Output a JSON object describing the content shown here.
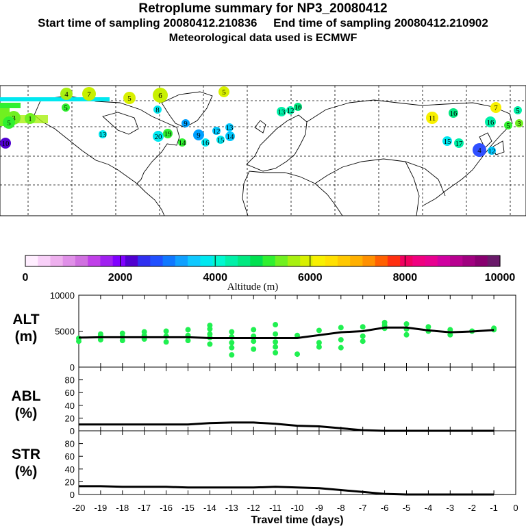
{
  "titles": {
    "main": "Retroplume summary for NP3_20080412",
    "times": "Start time of sampling 20080412.210836     End time of sampling 20080412.210902",
    "met": "Meteorological data used is ECMWF"
  },
  "colorbar": {
    "label": "Altitude (m)",
    "ticks": [
      "0",
      "2000",
      "4000",
      "6000",
      "8000",
      "10000"
    ],
    "colors": [
      "#ffeeff",
      "#f8d0f8",
      "#eeb0ee",
      "#e090e8",
      "#d070e0",
      "#c040e8",
      "#a020f0",
      "#8000ff",
      "#5000d0",
      "#3030f0",
      "#2050ff",
      "#1078ff",
      "#10a0ff",
      "#10c8ff",
      "#00e8f0",
      "#00f8d0",
      "#00f0a8",
      "#00e880",
      "#00e050",
      "#30f030",
      "#70f020",
      "#a8f010",
      "#d8f000",
      "#f8f000",
      "#ffe000",
      "#ffc800",
      "#ffb000",
      "#ff9000",
      "#ff6000",
      "#ff3010",
      "#f00060",
      "#f00080",
      "#e80090",
      "#d000a0",
      "#b80090",
      "#a00080",
      "#880070",
      "#6a1a6a"
    ]
  },
  "map": {
    "markers": [
      {
        "label": "4",
        "color": "#a8f010"
      },
      {
        "label": "7",
        "color": "#c8f000"
      },
      {
        "label": "5",
        "color": "#d8f000"
      },
      {
        "label": "6",
        "color": "#c8f000"
      },
      {
        "label": "5",
        "color": "#d8f000"
      },
      {
        "label": "5",
        "color": "#30f030"
      },
      {
        "label": "3",
        "color": "#70f020"
      },
      {
        "label": "1",
        "color": "#70f020"
      },
      {
        "label": "5",
        "color": "#30f030"
      },
      {
        "label": "9",
        "color": "#00a0ff"
      },
      {
        "label": "12",
        "color": "#00c8ff"
      },
      {
        "label": "13",
        "color": "#00c8ff"
      },
      {
        "label": "14",
        "color": "#00c8ff"
      },
      {
        "label": "15",
        "color": "#00e8f0"
      },
      {
        "label": "16",
        "color": "#00e8f0"
      },
      {
        "label": "20",
        "color": "#00e8f0"
      },
      {
        "label": "19",
        "color": "#30f030"
      },
      {
        "label": "13",
        "color": "#00f0a8"
      },
      {
        "label": "16",
        "color": "#00e880"
      },
      {
        "label": "12",
        "color": "#00f0a8"
      },
      {
        "label": "11",
        "color": "#f8f000"
      },
      {
        "label": "7",
        "color": "#f8f000"
      },
      {
        "label": "16",
        "color": "#00f0a8"
      },
      {
        "label": "4",
        "color": "#3050ff"
      },
      {
        "label": "12",
        "color": "#00c8ff"
      },
      {
        "label": "17",
        "color": "#00f0a8"
      },
      {
        "label": "15",
        "color": "#00e8f0"
      },
      {
        "label": "14",
        "color": "#30f030"
      },
      {
        "label": "13",
        "color": "#00e8f0"
      },
      {
        "label": "16",
        "color": "#00e880"
      },
      {
        "label": "5",
        "color": "#00f0a8"
      },
      {
        "label": "5",
        "color": "#30f030"
      },
      {
        "label": "3",
        "color": "#70f020"
      },
      {
        "label": "8",
        "color": "#00e8f0"
      },
      {
        "label": "9",
        "color": "#00a0ff"
      },
      {
        "label": "10",
        "color": "#5000d0"
      }
    ]
  },
  "panels": {
    "alt": {
      "label1": "ALT",
      "label2": "(m)",
      "yticks": [
        "0",
        "5000",
        "10000"
      ]
    },
    "abl": {
      "label1": "ABL",
      "label2": "(%)",
      "yticks": [
        "0",
        "20",
        "40",
        "60",
        "80"
      ]
    },
    "str": {
      "label1": "STR",
      "label2": "(%)",
      "yticks": [
        "0",
        "20",
        "40",
        "60",
        "80"
      ]
    }
  },
  "chart_data": {
    "type": "line",
    "xlabel": "Travel time (days)",
    "x_tick_labels": [
      "-20",
      "-19",
      "-18",
      "-17",
      "-16",
      "-15",
      "-14",
      "-13",
      "-12",
      "-11",
      "-10",
      "-9",
      "-8",
      "-7",
      "-6",
      "-5",
      "-4",
      "-3",
      "-2",
      "-1",
      "0"
    ],
    "xlim": [
      -20,
      0
    ],
    "x": [
      -20,
      -19,
      -18,
      -17,
      -16,
      -15,
      -14,
      -13,
      -12,
      -11,
      -10,
      -9,
      -8,
      -7,
      -6,
      -5,
      -4,
      -3,
      -2,
      -1
    ],
    "series": [
      {
        "name": "ALT median (m)",
        "ylim": [
          0,
          10000
        ],
        "values": [
          4100,
          4150,
          4150,
          4150,
          4150,
          4150,
          4050,
          4050,
          4050,
          4050,
          4050,
          4450,
          4850,
          5000,
          5500,
          5500,
          5100,
          4850,
          4950,
          5150
        ]
      },
      {
        "name": "ABL (%)",
        "ylim": [
          0,
          100
        ],
        "values": [
          10,
          10,
          10,
          10,
          10,
          10,
          12,
          13,
          13,
          11,
          8,
          7,
          4,
          1,
          0,
          0,
          0,
          0,
          0,
          0
        ]
      },
      {
        "name": "STR (%)",
        "ylim": [
          0,
          100
        ],
        "values": [
          13,
          13,
          12,
          12,
          12,
          11,
          11,
          11,
          11,
          12,
          11,
          10,
          7,
          4,
          1,
          0,
          0,
          0,
          0,
          0
        ]
      }
    ],
    "alt_points": [
      [
        -20,
        4000
      ],
      [
        -20,
        3600
      ],
      [
        -19,
        4300
      ],
      [
        -19,
        3800
      ],
      [
        -19,
        4600
      ],
      [
        -18,
        4200
      ],
      [
        -18,
        3700
      ],
      [
        -18,
        4700
      ],
      [
        -17,
        4400
      ],
      [
        -17,
        3900
      ],
      [
        -17,
        4900
      ],
      [
        -16,
        4300
      ],
      [
        -16,
        3500
      ],
      [
        -16,
        5000
      ],
      [
        -15,
        4400
      ],
      [
        -15,
        3700
      ],
      [
        -15,
        5200
      ],
      [
        -14,
        4100
      ],
      [
        -14,
        3200
      ],
      [
        -14,
        5300
      ],
      [
        -14,
        5800
      ],
      [
        -14,
        4600
      ],
      [
        -13,
        4200
      ],
      [
        -13,
        3400
      ],
      [
        -13,
        2700
      ],
      [
        -13,
        1700
      ],
      [
        -13,
        4900
      ],
      [
        -12,
        4300
      ],
      [
        -12,
        3600
      ],
      [
        -12,
        2500
      ],
      [
        -12,
        5200
      ],
      [
        -11,
        5900
      ],
      [
        -11,
        4600
      ],
      [
        -11,
        3500
      ],
      [
        -11,
        2800
      ],
      [
        -11,
        2000
      ],
      [
        -10,
        4400
      ],
      [
        -10,
        1800
      ],
      [
        -9,
        5100
      ],
      [
        -9,
        2800
      ],
      [
        -9,
        3400
      ],
      [
        -8,
        5500
      ],
      [
        -8,
        3800
      ],
      [
        -8,
        2700
      ],
      [
        -7,
        5600
      ],
      [
        -7,
        4300
      ],
      [
        -7,
        3600
      ],
      [
        -6,
        5800
      ],
      [
        -6,
        5400
      ],
      [
        -6,
        6200
      ],
      [
        -5,
        6000
      ],
      [
        -5,
        5300
      ],
      [
        -5,
        4500
      ],
      [
        -4,
        5600
      ],
      [
        -4,
        5000
      ],
      [
        -3,
        5200
      ],
      [
        -3,
        4500
      ],
      [
        -2,
        5000
      ],
      [
        -1,
        5200
      ],
      [
        -1,
        5400
      ]
    ],
    "colorbar_label": "Altitude (m)",
    "colorbar_range": [
      0,
      10000
    ]
  }
}
